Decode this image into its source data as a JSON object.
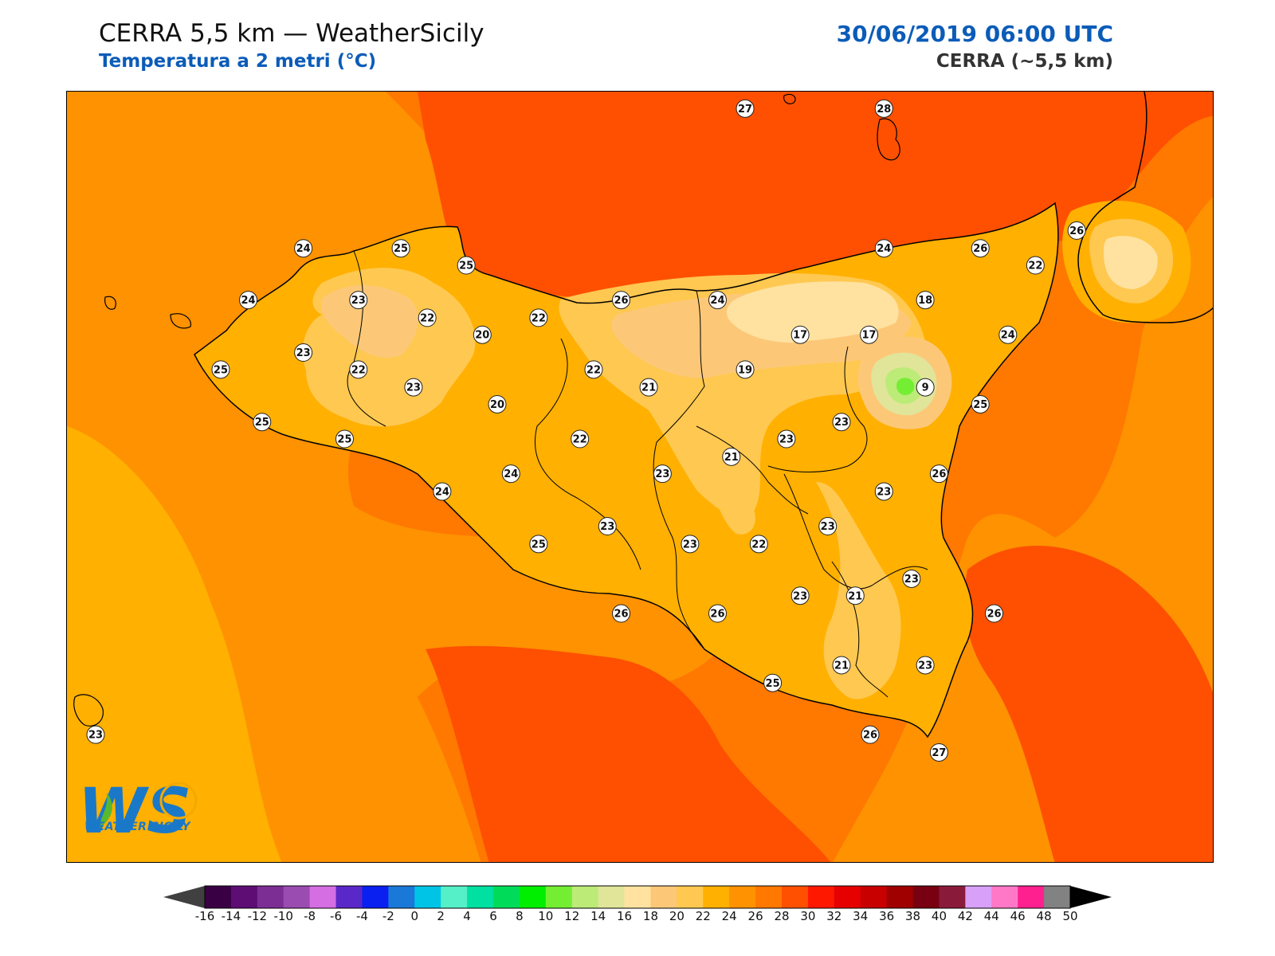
{
  "header": {
    "title": "CERRA 5,5 km — WeatherSicily",
    "subtitle": "Temperatura a 2 metri (°C)",
    "datetime": "30/06/2019 06:00 UTC",
    "model": "CERRA (~5,5 km)"
  },
  "logo": {
    "text": "WEATHER SICILY"
  },
  "colorbar": {
    "ticks": [
      "-16",
      "-14",
      "-12",
      "-10",
      "-8",
      "-6",
      "-4",
      "-2",
      "0",
      "2",
      "4",
      "6",
      "8",
      "10",
      "12",
      "14",
      "16",
      "18",
      "20",
      "22",
      "24",
      "26",
      "28",
      "30",
      "32",
      "34",
      "36",
      "38",
      "40",
      "42",
      "44",
      "46",
      "48",
      "50"
    ],
    "colors": [
      "#3a0044",
      "#5e0d75",
      "#7d2e95",
      "#9a4cb0",
      "#d56ee3",
      "#5a28c8",
      "#0a20f0",
      "#1a78d8",
      "#00c4e6",
      "#55f0c8",
      "#00e0a0",
      "#00dc5a",
      "#00ee00",
      "#74ee32",
      "#bceb78",
      "#e0e59a",
      "#ffe2a0",
      "#fcc878",
      "#ffc850",
      "#ffb000",
      "#fe9200",
      "#ff7800",
      "#fe5000",
      "#ff1800",
      "#e60000",
      "#c80000",
      "#a00000",
      "#780010",
      "#8a1a3a",
      "#d8a0f8",
      "#ff78c8",
      "#ff2090",
      "#828282",
      "#3c3c3c"
    ],
    "under_color": "#404040",
    "over_color": "#000000"
  },
  "map": {
    "station_values": [
      {
        "v": "27",
        "lx": 0.591,
        "ly": 0.022
      },
      {
        "v": "28",
        "lx": 0.712,
        "ly": 0.022
      },
      {
        "v": "24",
        "lx": 0.206,
        "ly": 0.203
      },
      {
        "v": "25",
        "lx": 0.291,
        "ly": 0.203
      },
      {
        "v": "25",
        "lx": 0.348,
        "ly": 0.225
      },
      {
        "v": "24",
        "lx": 0.158,
        "ly": 0.27
      },
      {
        "v": "23",
        "lx": 0.254,
        "ly": 0.27
      },
      {
        "v": "22",
        "lx": 0.314,
        "ly": 0.293
      },
      {
        "v": "20",
        "lx": 0.362,
        "ly": 0.315
      },
      {
        "v": "22",
        "lx": 0.411,
        "ly": 0.293
      },
      {
        "v": "26",
        "lx": 0.483,
        "ly": 0.27
      },
      {
        "v": "24",
        "lx": 0.567,
        "ly": 0.27
      },
      {
        "v": "24",
        "lx": 0.712,
        "ly": 0.203
      },
      {
        "v": "26",
        "lx": 0.796,
        "ly": 0.203
      },
      {
        "v": "26",
        "lx": 0.88,
        "ly": 0.18
      },
      {
        "v": "22",
        "lx": 0.844,
        "ly": 0.225
      },
      {
        "v": "18",
        "lx": 0.748,
        "ly": 0.27
      },
      {
        "v": "17",
        "lx": 0.639,
        "ly": 0.315
      },
      {
        "v": "17",
        "lx": 0.699,
        "ly": 0.315
      },
      {
        "v": "24",
        "lx": 0.82,
        "ly": 0.315
      },
      {
        "v": "23",
        "lx": 0.206,
        "ly": 0.338
      },
      {
        "v": "25",
        "lx": 0.134,
        "ly": 0.36
      },
      {
        "v": "22",
        "lx": 0.254,
        "ly": 0.36
      },
      {
        "v": "23",
        "lx": 0.302,
        "ly": 0.383
      },
      {
        "v": "20",
        "lx": 0.375,
        "ly": 0.405
      },
      {
        "v": "22",
        "lx": 0.459,
        "ly": 0.36
      },
      {
        "v": "21",
        "lx": 0.507,
        "ly": 0.383
      },
      {
        "v": "19",
        "lx": 0.591,
        "ly": 0.36
      },
      {
        "v": "9",
        "lx": 0.748,
        "ly": 0.383
      },
      {
        "v": "25",
        "lx": 0.796,
        "ly": 0.405
      },
      {
        "v": "25",
        "lx": 0.17,
        "ly": 0.428
      },
      {
        "v": "25",
        "lx": 0.242,
        "ly": 0.45
      },
      {
        "v": "22",
        "lx": 0.447,
        "ly": 0.45
      },
      {
        "v": "23",
        "lx": 0.627,
        "ly": 0.45
      },
      {
        "v": "23",
        "lx": 0.675,
        "ly": 0.428
      },
      {
        "v": "21",
        "lx": 0.579,
        "ly": 0.473
      },
      {
        "v": "24",
        "lx": 0.387,
        "ly": 0.495
      },
      {
        "v": "23",
        "lx": 0.519,
        "ly": 0.495
      },
      {
        "v": "26",
        "lx": 0.76,
        "ly": 0.495
      },
      {
        "v": "24",
        "lx": 0.327,
        "ly": 0.518
      },
      {
        "v": "23",
        "lx": 0.712,
        "ly": 0.518
      },
      {
        "v": "23",
        "lx": 0.471,
        "ly": 0.563
      },
      {
        "v": "23",
        "lx": 0.543,
        "ly": 0.586
      },
      {
        "v": "22",
        "lx": 0.603,
        "ly": 0.586
      },
      {
        "v": "23",
        "lx": 0.663,
        "ly": 0.563
      },
      {
        "v": "25",
        "lx": 0.411,
        "ly": 0.586
      },
      {
        "v": "23",
        "lx": 0.736,
        "ly": 0.631
      },
      {
        "v": "23",
        "lx": 0.639,
        "ly": 0.653
      },
      {
        "v": "21",
        "lx": 0.687,
        "ly": 0.653
      },
      {
        "v": "26",
        "lx": 0.483,
        "ly": 0.676
      },
      {
        "v": "26",
        "lx": 0.567,
        "ly": 0.676
      },
      {
        "v": "26",
        "lx": 0.808,
        "ly": 0.676
      },
      {
        "v": "21",
        "lx": 0.675,
        "ly": 0.743
      },
      {
        "v": "23",
        "lx": 0.748,
        "ly": 0.743
      },
      {
        "v": "25",
        "lx": 0.615,
        "ly": 0.766
      },
      {
        "v": "23",
        "lx": 0.025,
        "ly": 0.833
      },
      {
        "v": "26",
        "lx": 0.7,
        "ly": 0.833
      },
      {
        "v": "27",
        "lx": 0.76,
        "ly": 0.856
      }
    ]
  }
}
